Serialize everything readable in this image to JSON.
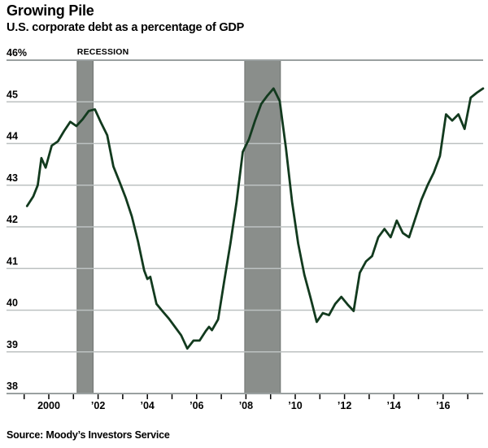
{
  "chart_data": {
    "type": "line",
    "title": "Growing Pile",
    "subtitle": "U.S. corporate debt as a percentage of GDP",
    "source": "Source: Moody’s Investors Service",
    "xlabel": "",
    "ylabel": "",
    "grid": true,
    "legend": "none",
    "ylim": [
      38,
      46
    ],
    "xlim": [
      1998.3,
      2017.65
    ],
    "yticks": [
      {
        "value": 46,
        "label": "46%"
      },
      {
        "value": 45,
        "label": "45"
      },
      {
        "value": 44,
        "label": "44"
      },
      {
        "value": 43,
        "label": "43"
      },
      {
        "value": 42,
        "label": "42"
      },
      {
        "value": 41,
        "label": "41"
      },
      {
        "value": 40,
        "label": "40"
      },
      {
        "value": 39,
        "label": "39"
      },
      {
        "value": 38,
        "label": "38"
      }
    ],
    "xticks": [
      1999,
      2000,
      2001,
      2002,
      2003,
      2004,
      2005,
      2006,
      2007,
      2008,
      2009,
      2010,
      2011,
      2012,
      2013,
      2014,
      2015,
      2016,
      2017
    ],
    "xtick_labels": [
      {
        "year": 2000,
        "label": "2000"
      },
      {
        "year": 2002,
        "label": "’02"
      },
      {
        "year": 2004,
        "label": "’04"
      },
      {
        "year": 2006,
        "label": "’06"
      },
      {
        "year": 2008,
        "label": "’08"
      },
      {
        "year": 2010,
        "label": "’10"
      },
      {
        "year": 2012,
        "label": "’12"
      },
      {
        "year": 2014,
        "label": "’14"
      },
      {
        "year": 2016,
        "label": "’16"
      }
    ],
    "recession_label": "RECESSION",
    "recession_bands": [
      {
        "from": 2001.15,
        "to": 2001.8
      },
      {
        "from": 2007.95,
        "to": 2009.4
      }
    ],
    "colors": {
      "line": "#123a1e",
      "band": "#8a8e8b",
      "band_edge": "#6e7370",
      "grid": "#bcc1c1",
      "grid_strong": "#9aa0a0",
      "tick": "#000000",
      "text": "#000000"
    },
    "series": [
      {
        "name": "U.S. corporate debt as a percentage of GDP",
        "unit": "% of GDP",
        "color": "#123a1e",
        "points": [
          [
            1999.12,
            42.5
          ],
          [
            1999.37,
            42.73
          ],
          [
            1999.55,
            43.0
          ],
          [
            1999.7,
            43.65
          ],
          [
            1999.87,
            43.42
          ],
          [
            2000.12,
            43.95
          ],
          [
            2000.37,
            44.05
          ],
          [
            2000.62,
            44.3
          ],
          [
            2000.87,
            44.52
          ],
          [
            2001.12,
            44.42
          ],
          [
            2001.37,
            44.58
          ],
          [
            2001.62,
            44.78
          ],
          [
            2001.87,
            44.82
          ],
          [
            2002.12,
            44.5
          ],
          [
            2002.37,
            44.2
          ],
          [
            2002.62,
            43.45
          ],
          [
            2002.87,
            43.08
          ],
          [
            2003.12,
            42.7
          ],
          [
            2003.37,
            42.25
          ],
          [
            2003.62,
            41.65
          ],
          [
            2003.87,
            40.95
          ],
          [
            2004.0,
            40.75
          ],
          [
            2004.12,
            40.8
          ],
          [
            2004.37,
            40.15
          ],
          [
            2004.62,
            39.97
          ],
          [
            2004.87,
            39.8
          ],
          [
            2005.12,
            39.6
          ],
          [
            2005.37,
            39.4
          ],
          [
            2005.62,
            39.08
          ],
          [
            2005.87,
            39.27
          ],
          [
            2006.12,
            39.27
          ],
          [
            2006.37,
            39.5
          ],
          [
            2006.5,
            39.6
          ],
          [
            2006.62,
            39.52
          ],
          [
            2006.87,
            39.78
          ],
          [
            2007.12,
            40.7
          ],
          [
            2007.37,
            41.6
          ],
          [
            2007.62,
            42.6
          ],
          [
            2007.87,
            43.8
          ],
          [
            2008.12,
            44.1
          ],
          [
            2008.37,
            44.55
          ],
          [
            2008.62,
            44.95
          ],
          [
            2008.87,
            45.15
          ],
          [
            2009.12,
            45.32
          ],
          [
            2009.37,
            45.02
          ],
          [
            2009.62,
            43.9
          ],
          [
            2009.87,
            42.6
          ],
          [
            2010.12,
            41.6
          ],
          [
            2010.37,
            40.85
          ],
          [
            2010.62,
            40.3
          ],
          [
            2010.87,
            39.72
          ],
          [
            2011.12,
            39.93
          ],
          [
            2011.37,
            39.88
          ],
          [
            2011.62,
            40.15
          ],
          [
            2011.87,
            40.32
          ],
          [
            2012.12,
            40.14
          ],
          [
            2012.37,
            39.98
          ],
          [
            2012.62,
            40.9
          ],
          [
            2012.87,
            41.17
          ],
          [
            2013.12,
            41.3
          ],
          [
            2013.37,
            41.75
          ],
          [
            2013.62,
            41.95
          ],
          [
            2013.87,
            41.75
          ],
          [
            2014.12,
            42.15
          ],
          [
            2014.37,
            41.85
          ],
          [
            2014.62,
            41.75
          ],
          [
            2014.87,
            42.2
          ],
          [
            2015.12,
            42.65
          ],
          [
            2015.37,
            43.0
          ],
          [
            2015.62,
            43.3
          ],
          [
            2015.87,
            43.7
          ],
          [
            2016.12,
            44.7
          ],
          [
            2016.37,
            44.55
          ],
          [
            2016.62,
            44.7
          ],
          [
            2016.87,
            44.35
          ],
          [
            2017.12,
            45.1
          ],
          [
            2017.37,
            45.22
          ],
          [
            2017.62,
            45.32
          ]
        ]
      }
    ]
  }
}
